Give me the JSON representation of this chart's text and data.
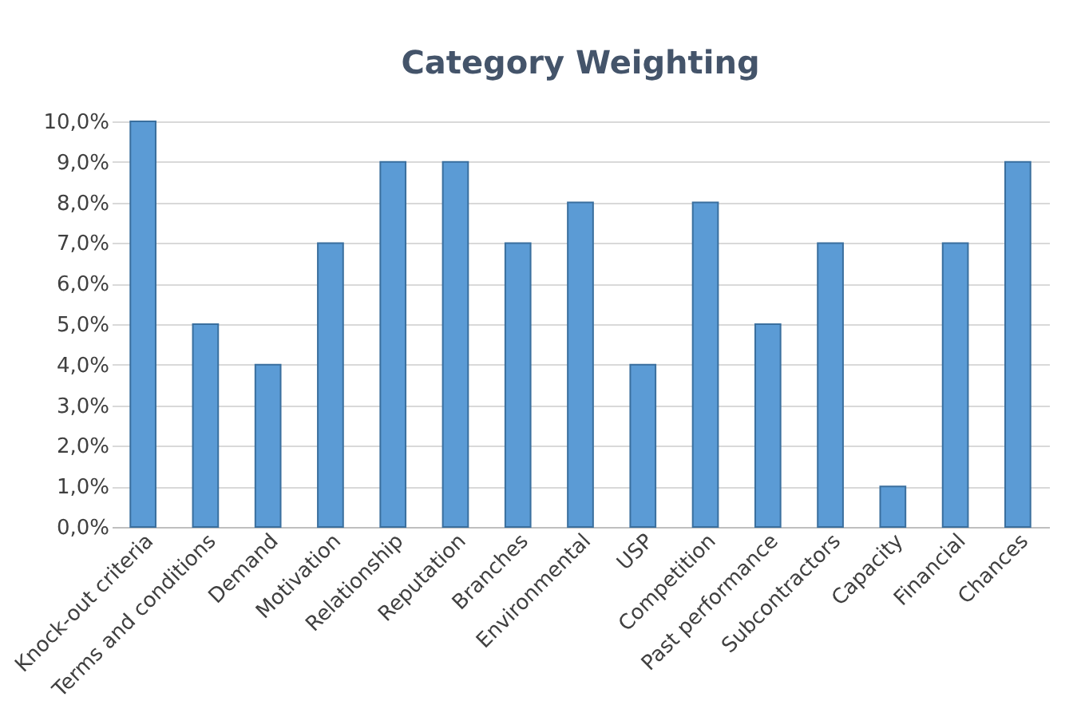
{
  "chart_data": {
    "type": "bar",
    "title": "Category Weighting",
    "categories": [
      "Knock-out criteria",
      "Terms and conditions",
      "Demand",
      "Motivation",
      "Relationship",
      "Reputation",
      "Branches",
      "Environmental",
      "USP",
      "Competition",
      "Past performance",
      "Subcontractors",
      "Capacity",
      "Financial",
      "Chances"
    ],
    "values": [
      10,
      5,
      4,
      7,
      9,
      9,
      7,
      8,
      4,
      8,
      5,
      7,
      1,
      7,
      9
    ],
    "color": "#5b9bd5",
    "ylim": [
      0,
      10
    ],
    "yticks": [
      {
        "value": 0,
        "label": "0,0%"
      },
      {
        "value": 1,
        "label": "1,0%"
      },
      {
        "value": 2,
        "label": "2,0%"
      },
      {
        "value": 3,
        "label": "3,0%"
      },
      {
        "value": 4,
        "label": "4,0%"
      },
      {
        "value": 5,
        "label": "5,0%"
      },
      {
        "value": 6,
        "label": "6,0%"
      },
      {
        "value": 7,
        "label": "7,0%"
      },
      {
        "value": 8,
        "label": "8,0%"
      },
      {
        "value": 9,
        "label": "9,0%"
      },
      {
        "value": 10,
        "label": "10,0%"
      }
    ],
    "grid": "y"
  }
}
